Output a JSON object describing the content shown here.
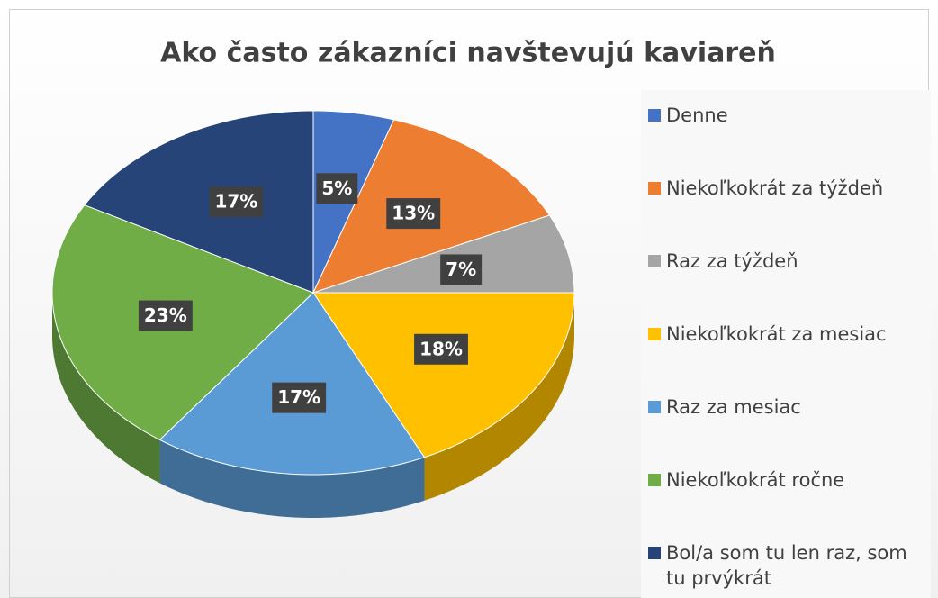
{
  "chart_data": {
    "type": "pie",
    "title": "Ako často zákazníci navštevujú kaviareň",
    "categories": [
      "Denne",
      "Niekoľkokrát za týždeň",
      "Raz za týždeň",
      "Niekoľkokrát za mesiac",
      "Raz za mesiac",
      "Niekoľkokrát ročne",
      "Bol/a som tu len raz, som tu prvýkrát"
    ],
    "values": [
      5,
      13,
      7,
      18,
      17,
      23,
      17
    ],
    "value_labels": [
      "5%",
      "13%",
      "7%",
      "18%",
      "17%",
      "23%",
      "17%"
    ],
    "colors": [
      "#4472c4",
      "#ed7d31",
      "#a5a5a5",
      "#ffc000",
      "#5b9bd5",
      "#70ad47",
      "#264478"
    ],
    "legend": "right"
  }
}
